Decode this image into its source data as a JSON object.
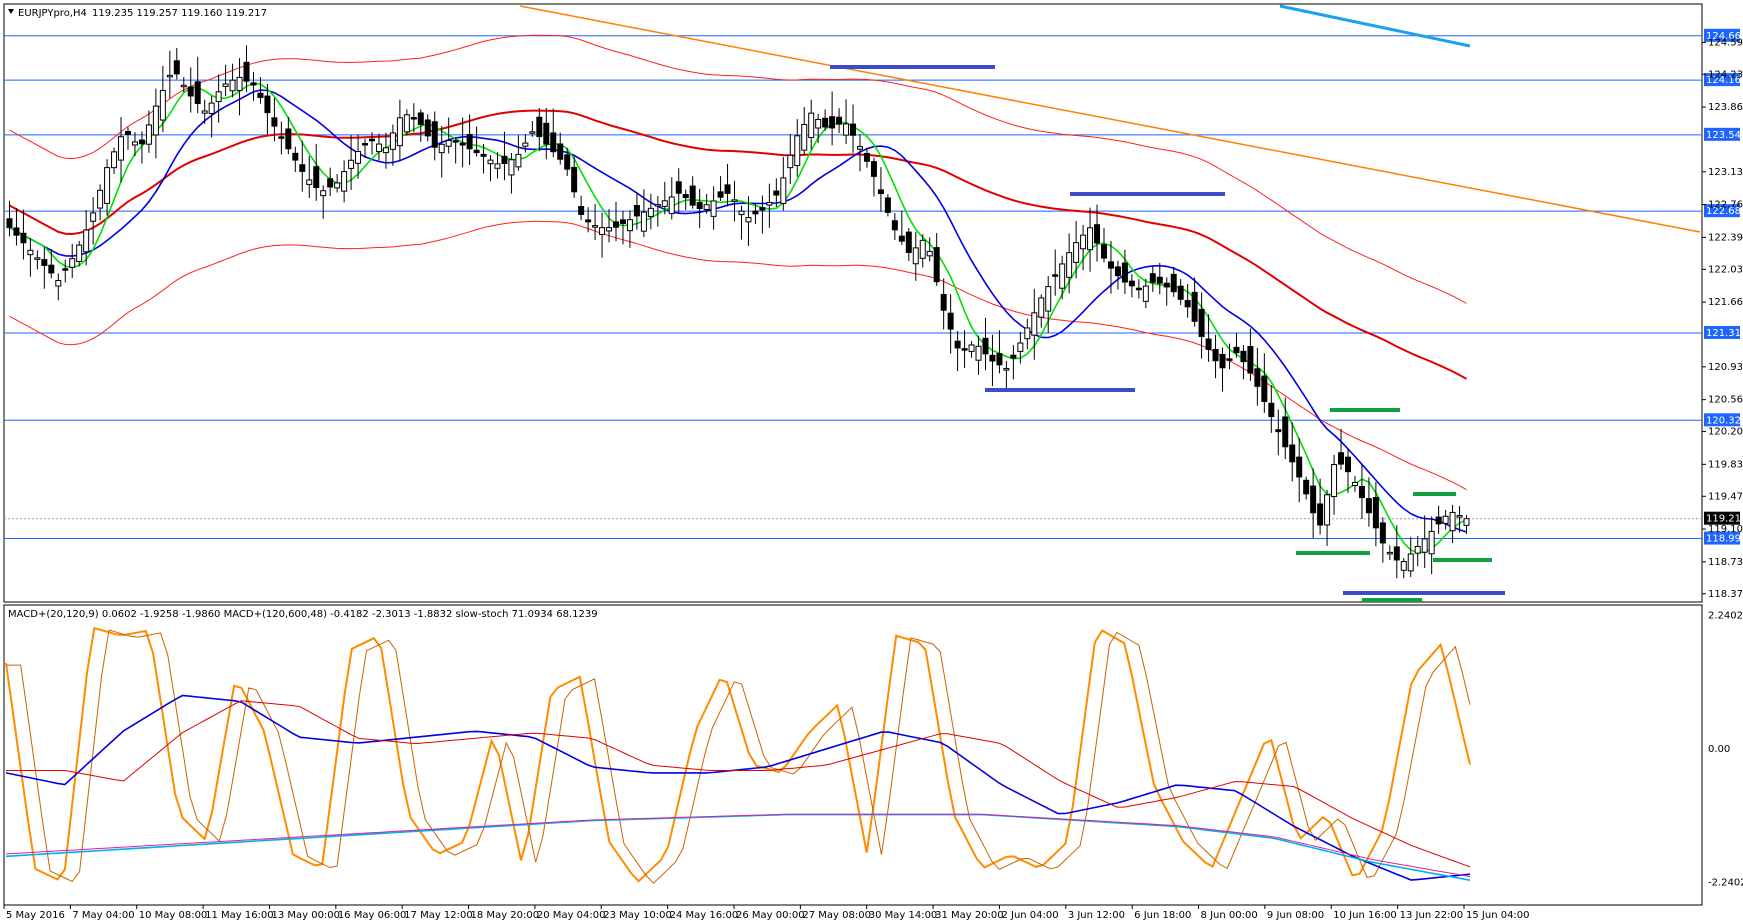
{
  "header": {
    "symbol_label": "EURJPYpro,H4",
    "ohlc_text": "119.235 119.257 119.160 119.217",
    "sub_text": "MACD+(20,120,9) 0.0602 -1.9258 -1.9860  MACD+(120,600,48) -0.4182 -2.3013 -1.8832  slow-stoch 71.0934 68.1239"
  },
  "colors": {
    "background": "#ffffff",
    "bull_candle": "#ffffff",
    "bear_candle": "#000000",
    "ma_fast": "#00e000",
    "ma_mid": "#0000e0",
    "ma_slow": "#e00000",
    "bands": "#ff2020",
    "trendline_orange": "#ff8000",
    "trendline_cyan": "#1ea0f0",
    "level_line": "#1e64ff",
    "zone_blue": "#3c4bcc",
    "zone_green": "#10a040",
    "stoch_line": "#ff8c00",
    "macd_mid": "#0000e0",
    "macd_slow": "#00b0f0",
    "macd_pink": "#e020a0"
  },
  "chart_data": {
    "type": "candlestick",
    "instrument": "EURJPYpro",
    "timeframe": "H4",
    "price_ylim": [
      118.3,
      125.0
    ],
    "price_ticks": [
      "124.590",
      "124.230",
      "123.860",
      "123.130",
      "122.760",
      "122.390",
      "122.030",
      "121.660",
      "120.930",
      "120.560",
      "120.200",
      "119.830",
      "119.470",
      "119.100",
      "118.730",
      "118.370"
    ],
    "current_price": "119.217",
    "levels": [
      {
        "value": "124.664",
        "y": 124.664
      },
      {
        "value": "124.164",
        "y": 124.164
      },
      {
        "value": "123.547",
        "y": 123.547
      },
      {
        "value": "122.686",
        "y": 122.686
      },
      {
        "value": "121.312",
        "y": 121.312
      },
      {
        "value": "120.327",
        "y": 120.327
      },
      {
        "value": "118.993",
        "y": 118.993
      }
    ],
    "time_labels": [
      "5 May 2016",
      "7 May 04:00",
      "10 May 08:00",
      "11 May 16:00",
      "13 May 00:00",
      "16 May 06:00",
      "17 May 12:00",
      "18 May 20:00",
      "20 May 04:00",
      "23 May 10:00",
      "24 May 16:00",
      "26 May 00:00",
      "27 May 08:00",
      "30 May 14:00",
      "31 May 20:00",
      "2 Jun 04:00",
      "3 Jun 12:00",
      "6 Jun 18:00",
      "8 Jun 00:00",
      "9 Jun 08:00",
      "10 Jun 16:00",
      "13 Jun 22:00",
      "15 Jun 04:00"
    ],
    "close_path": [
      122.5,
      122.3,
      122.1,
      121.9,
      122.2,
      122.6,
      123.2,
      123.6,
      123.4,
      123.9,
      124.3,
      124.0,
      123.8,
      124.1,
      124.2,
      124.1,
      123.7,
      123.4,
      123.1,
      122.9,
      123.0,
      123.3,
      123.5,
      123.4,
      123.8,
      123.7,
      123.4,
      123.5,
      123.4,
      123.3,
      123.2,
      123.3,
      123.6,
      123.4,
      123.2,
      122.6,
      122.5,
      122.5,
      122.6,
      122.7,
      122.8,
      122.9,
      122.7,
      122.8,
      122.9,
      122.6,
      122.7,
      122.9,
      123.5,
      123.8,
      123.6,
      123.7,
      123.4,
      123.0,
      122.5,
      122.2,
      122.4,
      121.6,
      121.1,
      121.2,
      121.0,
      120.9,
      121.3,
      121.7,
      122.0,
      122.3,
      122.5,
      122.1,
      121.9,
      121.8,
      121.9,
      121.8,
      121.6,
      121.2,
      120.9,
      121.1,
      120.8,
      120.4,
      120.0,
      119.6,
      119.1,
      119.9,
      119.7,
      119.3,
      118.9,
      118.7,
      118.9,
      119.1,
      119.3,
      119.217
    ],
    "series": [
      {
        "name": "MACD+(20,120,9)",
        "values": [
          0.0602,
          -1.9258,
          -1.986
        ]
      },
      {
        "name": "MACD+(120,600,48)",
        "values": [
          -0.4182,
          -2.3013,
          -1.8832
        ]
      },
      {
        "name": "slow-stoch",
        "values": [
          71.0934,
          68.1239
        ]
      }
    ],
    "stoch_path": [
      85,
      10,
      5,
      98,
      95,
      97,
      30,
      20,
      80,
      60,
      15,
      10,
      90,
      95,
      30,
      15,
      20,
      60,
      10,
      75,
      80,
      20,
      5,
      15,
      60,
      82,
      48,
      45,
      60,
      70,
      15,
      95,
      92,
      30,
      10,
      15,
      10,
      20,
      98,
      92,
      40,
      20,
      10,
      35,
      60,
      20,
      30,
      5,
      25,
      80,
      92,
      48
    ],
    "macd_ylim": [
      -2.6,
      2.4
    ],
    "macd_ticks": [
      "2.2402",
      "0.00",
      "-2.2402"
    ]
  },
  "annotation": {}
}
